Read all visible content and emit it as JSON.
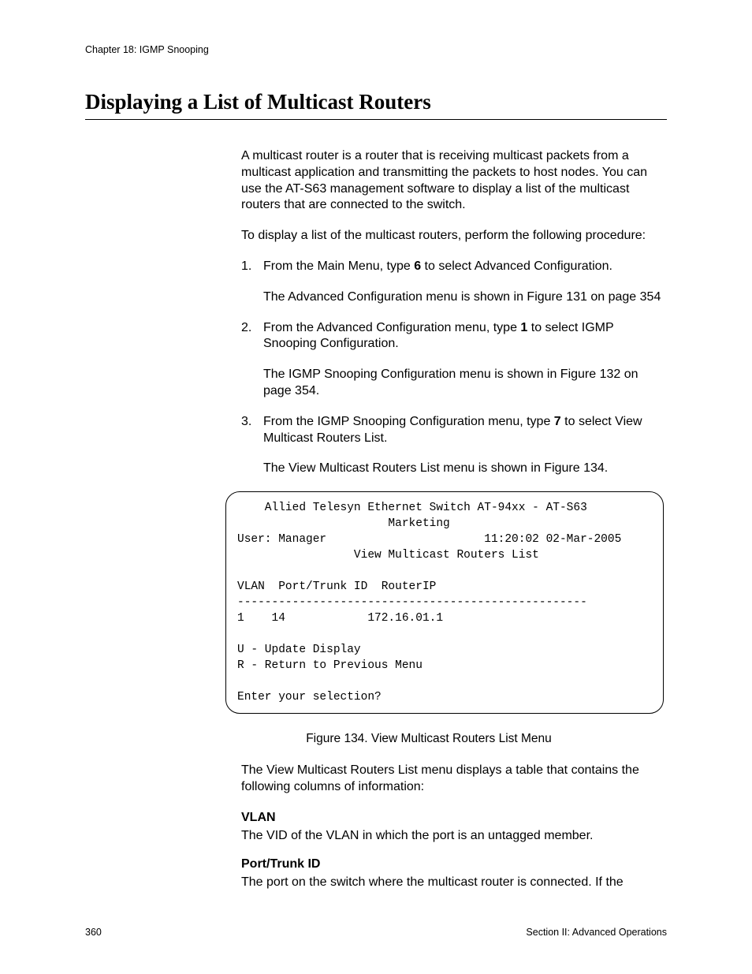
{
  "header": {
    "chapter": "Chapter 18: IGMP Snooping"
  },
  "title": "Displaying a List of Multicast Routers",
  "intro1": "A multicast router is a router that is receiving multicast packets from a multicast application and transmitting the packets to host nodes. You can use the AT-S63 management software to display a list of the multicast routers that are connected to the switch.",
  "intro2": "To display a list of the multicast routers, perform the following procedure:",
  "steps": {
    "s1num": "1.",
    "s1a": "From the Main Menu, type ",
    "s1bold": "6",
    "s1b": " to select Advanced Configuration.",
    "s1sub": "The Advanced Configuration menu is shown in Figure 131 on page 354",
    "s2num": "2.",
    "s2a": "From the Advanced Configuration menu, type ",
    "s2bold": "1",
    "s2b": " to select IGMP Snooping Configuration.",
    "s2sub": "The IGMP Snooping Configuration menu is shown in Figure 132 on page 354.",
    "s3num": "3.",
    "s3a": "From the IGMP Snooping Configuration menu, type ",
    "s3bold": "7",
    "s3b": " to select View Multicast Routers List.",
    "s3sub": "The View Multicast Routers List menu is shown in Figure 134."
  },
  "terminal": {
    "line1": "    Allied Telesyn Ethernet Switch AT-94xx - AT-S63",
    "line2": "                      Marketing",
    "line3": "User: Manager                       11:20:02 02-Mar-2005",
    "line4": "                 View Multicast Routers List",
    "blank1": "",
    "col_header": "VLAN  Port/Trunk ID  RouterIP",
    "rule": "---------------------------------------------------",
    "row1": "1    14            172.16.01.1",
    "blank2": "",
    "optU": "U - Update Display",
    "optR": "R - Return to Previous Menu",
    "blank3": "",
    "prompt": "Enter your selection?"
  },
  "caption": "Figure 134. View Multicast Routers List Menu",
  "after": "The View Multicast Routers List menu displays a table that contains the following columns of information:",
  "defs": {
    "t1": "VLAN",
    "d1": "The VID of the VLAN in which the port is an untagged member.",
    "t2": "Port/Trunk ID",
    "d2": "The port on the switch where the multicast router is connected. If the"
  },
  "footer": {
    "page": "360",
    "section": "Section II: Advanced Operations"
  }
}
